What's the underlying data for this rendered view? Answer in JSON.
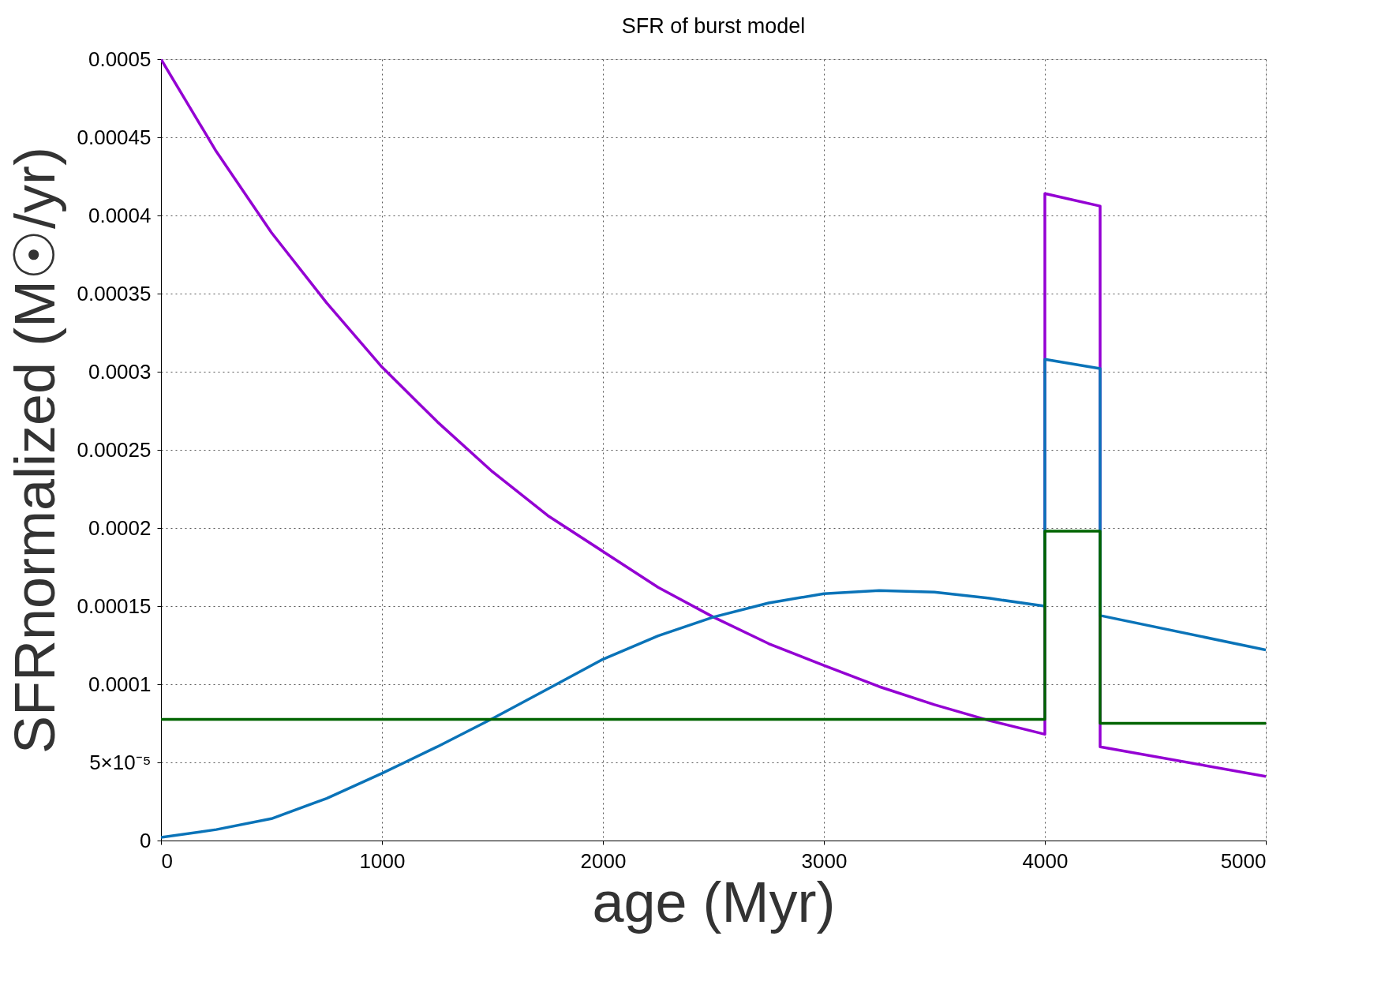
{
  "chart_data": {
    "type": "line",
    "title": "SFR of burst model",
    "xlabel": "age (Myr)",
    "ylabel": "SFRnormalized (M☉/yr)",
    "xlim": [
      0,
      5000
    ],
    "xticks": [
      0,
      1000,
      2000,
      3000,
      4000,
      5000
    ],
    "ylim": [
      0,
      0.0005
    ],
    "yticks": [
      0,
      {
        "value": 5e-05,
        "label": "5×10⁻⁵"
      },
      0.0001,
      0.00015,
      0.0002,
      0.00025,
      0.0003,
      0.00035,
      0.0004,
      0.00045,
      0.0005
    ],
    "grid": true,
    "legend": false,
    "marker": "none",
    "line_style": "solid",
    "series": [
      {
        "color": "#9400d3",
        "x": [
          0,
          250,
          500,
          750,
          1000,
          1250,
          1500,
          1750,
          2000,
          2250,
          2500,
          2750,
          3000,
          3250,
          3500,
          3750,
          4000,
          4000,
          4250,
          4250,
          5000
        ],
        "values": [
          0.0005,
          0.000441,
          0.000389,
          0.000344,
          0.000303,
          0.000268,
          0.000236,
          0.000208,
          0.000185,
          0.000162,
          0.000143,
          0.000126,
          0.000112,
          9.85e-05,
          8.69e-05,
          7.67e-05,
          6.8e-05,
          0.000414,
          0.000406,
          6e-05,
          4.1e-05
        ]
      },
      {
        "color": "#0a73b8",
        "x": [
          0,
          250,
          500,
          750,
          1000,
          1250,
          1500,
          1750,
          2000,
          2250,
          2500,
          2750,
          3000,
          3250,
          3500,
          3750,
          4000,
          4000,
          4250,
          4250,
          5000
        ],
        "values": [
          2e-06,
          7e-06,
          1.4e-05,
          2.7e-05,
          4.3e-05,
          6e-05,
          7.8e-05,
          9.7e-05,
          0.000116,
          0.000131,
          0.000143,
          0.000152,
          0.000158,
          0.00016,
          0.000159,
          0.000155,
          0.00015,
          0.000308,
          0.000302,
          0.000144,
          0.000122
        ]
      },
      {
        "color": "#006400",
        "x": [
          0,
          4000,
          4000,
          4250,
          4250,
          5000
        ],
        "values": [
          7.75e-05,
          7.75e-05,
          0.000198,
          0.000198,
          7.5e-05,
          7.5e-05
        ]
      }
    ]
  }
}
